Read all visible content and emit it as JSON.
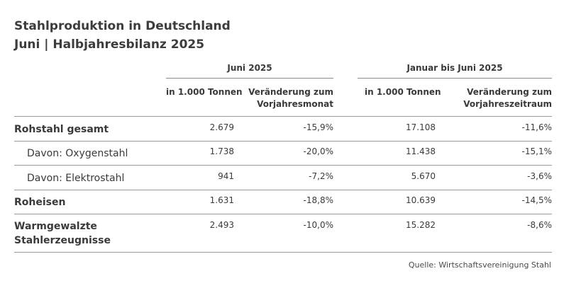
{
  "title": {
    "line1": "Stahlproduktion in Deutschland",
    "line2": "Juni | Halbjahresbilanz 2025"
  },
  "groups": [
    {
      "label": "Juni 2025"
    },
    {
      "label": "Januar bis Juni 2025"
    }
  ],
  "columns": [
    {
      "line1": "in 1.000 Tonnen",
      "line2": ""
    },
    {
      "line1": "Veränderung zum",
      "line2": "Vorjahresmonat"
    },
    {
      "line1": "in 1.000 Tonnen",
      "line2": ""
    },
    {
      "line1": "Veränderung zum",
      "line2": "Vorjahreszeitraum"
    }
  ],
  "rows": [
    {
      "label1": "Rohstahl gesamt",
      "label2": "",
      "values": [
        "2.679",
        "-15,9%",
        "17.108",
        "-11,6%"
      ]
    },
    {
      "label1": "Davon: Oxygenstahl",
      "label2": "",
      "values": [
        "1.738",
        "-20,0%",
        "11.438",
        "-15,1%"
      ]
    },
    {
      "label1": "Davon: Elektrostahl",
      "label2": "",
      "values": [
        "941",
        "-7,2%",
        "5.670",
        "-3,6%"
      ]
    },
    {
      "label1": "Roheisen",
      "label2": "",
      "values": [
        "1.631",
        "-18,8%",
        "10.639",
        "-14,5%"
      ]
    },
    {
      "label1": "Warmgewalzte",
      "label2": "Stahlerzeugnisse",
      "values": [
        "2.493",
        "-10,0%",
        "15.282",
        "-8,6%"
      ]
    }
  ],
  "source": "Quelle: Wirtschaftsvereinigung Stahl"
}
